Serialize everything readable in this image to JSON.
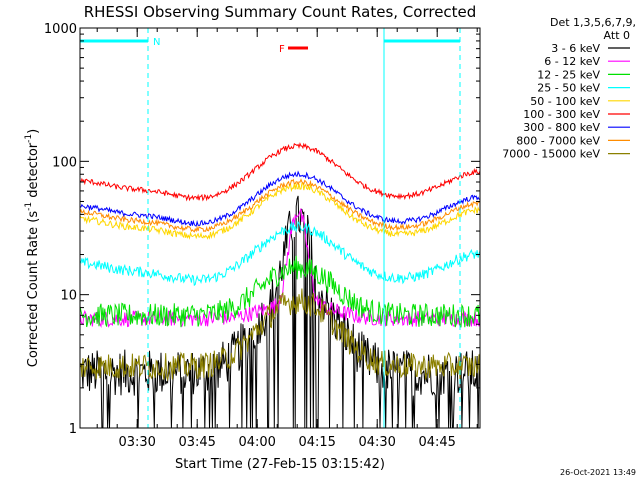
{
  "chart_data": {
    "type": "line",
    "title": "RHESSI Observing Summary Count Rates, Corrected",
    "xlabel": "Start Time (27-Feb-15 03:15:42)",
    "ylabel_main": "Corrected Count Rate (s",
    "ylabel_sup1": "-1",
    "ylabel_mid": " detector",
    "ylabel_sup2": "-1",
    "ylabel_end": ")",
    "yscale": "log",
    "ylim": [
      1,
      1000
    ],
    "xlim_min": [
      0,
      100
    ],
    "x_unit": "minutes after 03:15:42",
    "yticks": [
      {
        "v": 1,
        "label": "1"
      },
      {
        "v": 10,
        "label": "10"
      },
      {
        "v": 100,
        "label": "100"
      },
      {
        "v": 1000,
        "label": "1000"
      }
    ],
    "xticks": [
      {
        "t": 14.3,
        "label": "03:30"
      },
      {
        "t": 29.3,
        "label": "03:45"
      },
      {
        "t": 44.3,
        "label": "04:00"
      },
      {
        "t": 59.3,
        "label": "04:15"
      },
      {
        "t": 74.3,
        "label": "04:30"
      },
      {
        "t": 89.3,
        "label": "04:45"
      }
    ],
    "legend_header": [
      "Det 1,3,5,6,7,9,",
      "Att 0"
    ],
    "legend_placement": "right",
    "series": [
      {
        "name": "3 - 6 keV",
        "color": "#000000",
        "shape": "low",
        "base": 2.6,
        "peak": 30,
        "noise": 0.35
      },
      {
        "name": "6 - 12 keV",
        "color": "#ff00ff",
        "shape": "peak",
        "base": 6.6,
        "peak": 40,
        "noise": 0.12
      },
      {
        "name": "12 - 25 keV",
        "color": "#00e000",
        "shape": "bump",
        "base": 7.0,
        "peak": 16,
        "noise": 0.18
      },
      {
        "name": "25 - 50 keV",
        "color": "#00ffff",
        "shape": "wave",
        "base": 15,
        "peak": 32,
        "noise": 0.08
      },
      {
        "name": "50 - 100 keV",
        "color": "#ffd700",
        "shape": "wave",
        "base": 32,
        "peak": 65,
        "noise": 0.05
      },
      {
        "name": "100 - 300 keV",
        "color": "#ff0000",
        "shape": "wave",
        "base": 62,
        "peak": 130,
        "noise": 0.04
      },
      {
        "name": "300 - 800 keV",
        "color": "#0000ff",
        "shape": "wave",
        "base": 40,
        "peak": 80,
        "noise": 0.04
      },
      {
        "name": "800 - 7000 keV",
        "color": "#ff8c00",
        "shape": "wave",
        "base": 36,
        "peak": 70,
        "noise": 0.04
      },
      {
        "name": "7000 - 15000 keV",
        "color": "#8b8000",
        "shape": "bump",
        "base": 2.9,
        "peak": 9,
        "noise": 0.2
      }
    ],
    "flags": [
      {
        "label": "N",
        "color": "#00ffff",
        "spans": [
          [
            0,
            17
          ],
          [
            76,
            95
          ]
        ]
      },
      {
        "label": "F",
        "color": "#ff0000",
        "spans": [
          [
            52,
            57
          ]
        ]
      }
    ],
    "night_lines_min": [
      0,
      17,
      76,
      95
    ],
    "footer_timestamp": "26-Oct-2021 13:49"
  }
}
